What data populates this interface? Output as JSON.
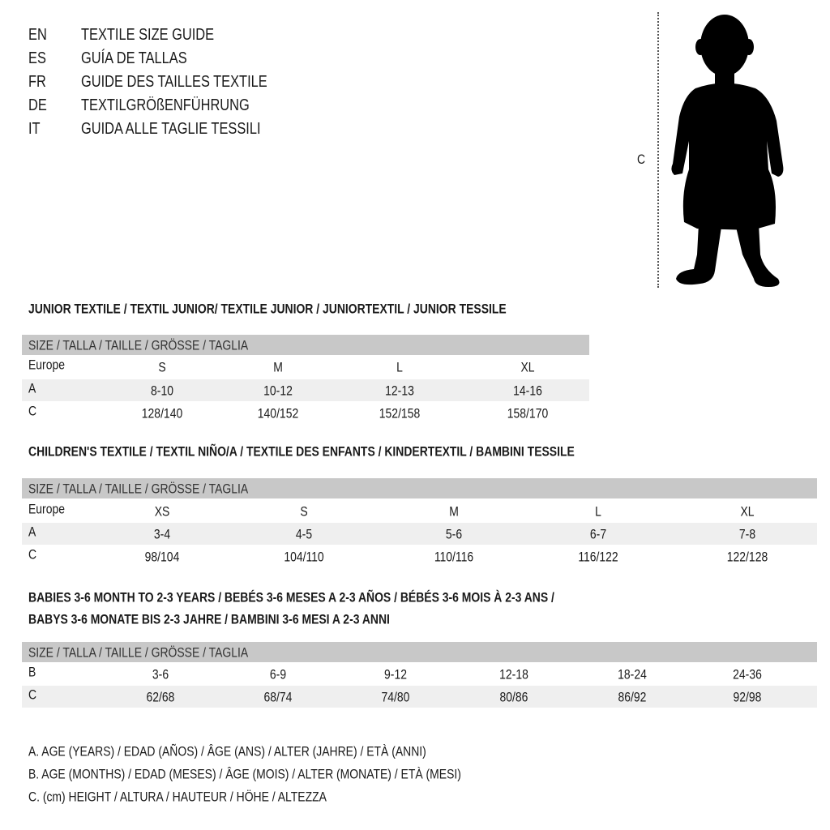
{
  "languages": [
    {
      "code": "EN",
      "title": "TEXTILE SIZE GUIDE"
    },
    {
      "code": "ES",
      "title": "GUÍA DE TALLAS"
    },
    {
      "code": "FR",
      "title": "GUIDE DES TAILLES TEXTILE"
    },
    {
      "code": "DE",
      "title": "TEXTILGRÖßENFÜHRUNG"
    },
    {
      "code": "IT",
      "title": "GUIDA ALLE TAGLIE TESSILI"
    }
  ],
  "figure": {
    "measure_label": "C",
    "icon": "child-silhouette"
  },
  "tables": [
    {
      "title": [
        "JUNIOR TEXTILE / TEXTIL JUNIOR/ TEXTILE JUNIOR / JUNIORTEXTIL / JUNIOR TESSILE"
      ],
      "header": "SIZE / TALLA / TAILLE / GRÖSSE / TAGLIA",
      "rows": [
        {
          "label": "Europe",
          "values": [
            "S",
            "M",
            "L",
            "XL"
          ]
        },
        {
          "label": "A",
          "values": [
            "8-10",
            "10-12",
            "12-13",
            "14-16"
          ]
        },
        {
          "label": "C",
          "values": [
            "128/140",
            "140/152",
            "152/158",
            "158/170"
          ]
        }
      ]
    },
    {
      "title": [
        "CHILDREN'S TEXTILE / TEXTIL NIÑO/A / TEXTILE DES ENFANTS / KINDERTEXTIL / BAMBINI TESSILE"
      ],
      "header": "SIZE / TALLA / TAILLE / GRÖSSE / TAGLIA",
      "rows": [
        {
          "label": "Europe",
          "values": [
            "XS",
            "S",
            "M",
            "L",
            "XL"
          ]
        },
        {
          "label": "A",
          "values": [
            "3-4",
            "4-5",
            "5-6",
            "6-7",
            "7-8"
          ]
        },
        {
          "label": "C",
          "values": [
            "98/104",
            "104/110",
            "110/116",
            "116/122",
            "122/128"
          ]
        }
      ]
    },
    {
      "title": [
        "BABIES 3-6 MONTH TO 2-3 YEARS / BEBÉS 3-6 MESES A 2-3 AÑOS / BÉBÉS 3-6 MOIS À 2-3 ANS /",
        "BABYS 3-6 MONATE BIS 2-3 JAHRE / BAMBINI 3-6 MESI A 2-3 ANNI"
      ],
      "header": "SIZE / TALLA / TAILLE / GRÖSSE / TAGLIA",
      "rows": [
        {
          "label": "B",
          "values": [
            "3-6",
            "6-9",
            "9-12",
            "12-18",
            "18-24",
            "24-36"
          ]
        },
        {
          "label": "C",
          "values": [
            "62/68",
            "68/74",
            "74/80",
            "80/86",
            "86/92",
            "92/98"
          ]
        }
      ]
    }
  ],
  "legend": [
    "A. AGE (YEARS) / EDAD (AÑOS) / ÂGE (ANS) / ALTER (JAHRE) / ETÀ (ANNI)",
    "B. AGE (MONTHS) / EDAD (MESES) / ÂGE (MOIS) / ALTER (MONATE) / ETÀ (MESI)",
    "C. (cm) HEIGHT / ALTURA / HAUTEUR / HÖHE / ALTEZZA"
  ],
  "colors": {
    "header_bar": "#c8c8c8",
    "stripe": "#efefef",
    "text": "#1a1a1a"
  }
}
